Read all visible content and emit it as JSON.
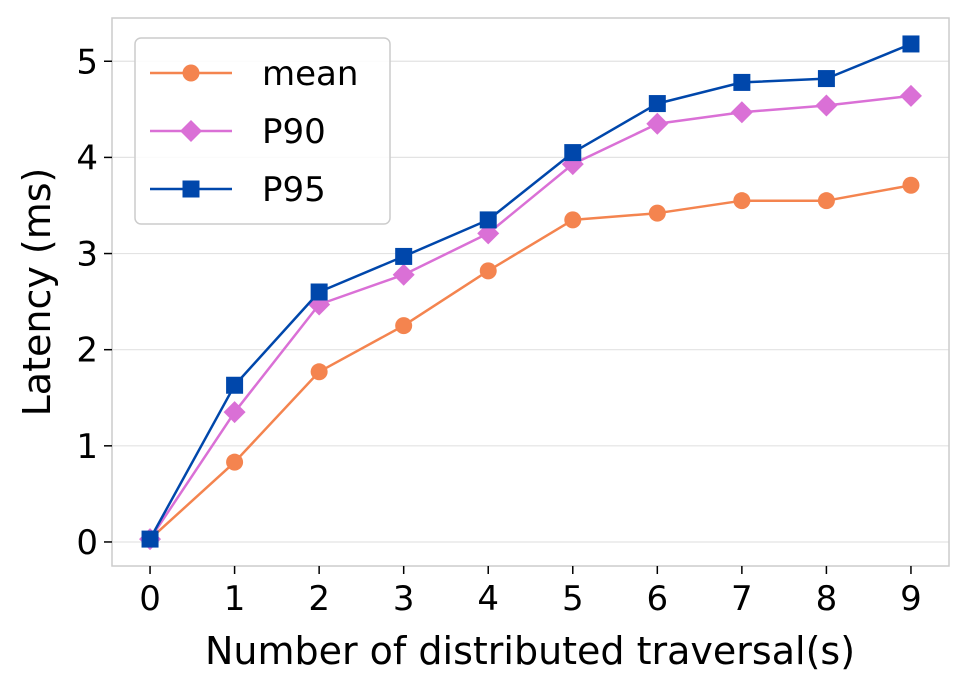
{
  "chart_data": {
    "type": "line",
    "xlabel": "Number of distributed traversal(s)",
    "ylabel": "Latency (ms)",
    "x": [
      0,
      1,
      2,
      3,
      4,
      5,
      6,
      7,
      8,
      9
    ],
    "xlim": [
      -0.45,
      9.45
    ],
    "ylim": [
      -0.25,
      5.45
    ],
    "yticks": [
      0,
      1,
      2,
      3,
      4,
      5
    ],
    "grid": "horizontal",
    "legend_position": "top-left",
    "series": [
      {
        "name": "mean",
        "color": "#F4844F",
        "marker": "circle",
        "values": [
          0.03,
          0.83,
          1.77,
          2.25,
          2.82,
          3.35,
          3.42,
          3.55,
          3.55,
          3.71
        ]
      },
      {
        "name": "P90",
        "color": "#DA70D6",
        "marker": "diamond",
        "values": [
          0.03,
          1.35,
          2.47,
          2.78,
          3.21,
          3.93,
          4.35,
          4.47,
          4.54,
          4.64
        ]
      },
      {
        "name": "P95",
        "color": "#0047AB",
        "marker": "square",
        "values": [
          0.03,
          1.63,
          2.6,
          2.97,
          3.35,
          4.05,
          4.56,
          4.78,
          4.82,
          5.18
        ]
      }
    ]
  }
}
